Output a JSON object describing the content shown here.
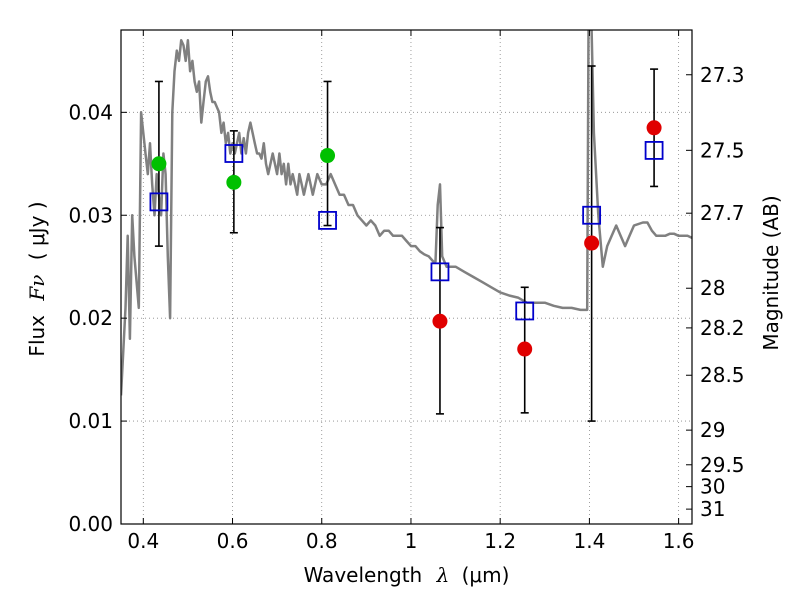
{
  "chart_data": {
    "type": "scatter",
    "xlabel_prefix": "Wavelength",
    "xlabel_symbol": "λ",
    "xlabel_unit": "(μm)",
    "ylabel_prefix": "Flux",
    "ylabel_symbol": "Fν",
    "ylabel_unit": "( μJy )",
    "y2label": "Magnitude (AB)",
    "xlim": [
      0.35,
      1.63
    ],
    "ylim": [
      0.0,
      0.048
    ],
    "x_ticks": [
      0.4,
      0.6,
      0.8,
      1.0,
      1.2,
      1.4,
      1.6
    ],
    "x_tick_labels": [
      "0.4",
      "0.6",
      "0.8",
      "1",
      "1.2",
      "1.4",
      "1.6"
    ],
    "y_ticks": [
      0.0,
      0.01,
      0.02,
      0.03,
      0.04
    ],
    "y_tick_labels": [
      "0.00",
      "0.01",
      "0.02",
      "0.03",
      "0.04"
    ],
    "mag_ticks": [
      {
        "label": "27.3",
        "mag": 27.3
      },
      {
        "label": "27.5",
        "mag": 27.5
      },
      {
        "label": "27.7",
        "mag": 27.7
      },
      {
        "label": "28",
        "mag": 28.0
      },
      {
        "label": "28.2",
        "mag": 28.2
      },
      {
        "label": "28.5",
        "mag": 28.5
      },
      {
        "label": "29",
        "mag": 29.0
      },
      {
        "label": "29.5",
        "mag": 29.5
      },
      {
        "label": "30",
        "mag": 30.0
      },
      {
        "label": "31",
        "mag": 31.0
      }
    ],
    "grid": true,
    "colors": {
      "model_line": "#808080",
      "detection": "#00c000",
      "upper_limit": "#e00000",
      "model_flux_box": "#0000cc",
      "error_bar": "#000000",
      "grid": "#888888"
    },
    "series": [
      {
        "kind": "model_spectrum",
        "points": [
          [
            0.35,
            0.0125
          ],
          [
            0.36,
            0.021
          ],
          [
            0.365,
            0.028
          ],
          [
            0.37,
            0.018
          ],
          [
            0.375,
            0.03
          ],
          [
            0.38,
            0.026
          ],
          [
            0.39,
            0.021
          ],
          [
            0.395,
            0.04
          ],
          [
            0.4,
            0.038
          ],
          [
            0.405,
            0.036
          ],
          [
            0.41,
            0.034
          ],
          [
            0.415,
            0.037
          ],
          [
            0.42,
            0.033
          ],
          [
            0.425,
            0.03
          ],
          [
            0.43,
            0.034
          ],
          [
            0.435,
            0.032
          ],
          [
            0.44,
            0.03
          ],
          [
            0.445,
            0.036
          ],
          [
            0.45,
            0.034
          ],
          [
            0.455,
            0.026
          ],
          [
            0.46,
            0.02
          ],
          [
            0.465,
            0.04
          ],
          [
            0.47,
            0.044
          ],
          [
            0.475,
            0.046
          ],
          [
            0.48,
            0.045
          ],
          [
            0.485,
            0.047
          ],
          [
            0.49,
            0.0465
          ],
          [
            0.495,
            0.045
          ],
          [
            0.5,
            0.047
          ],
          [
            0.505,
            0.044
          ],
          [
            0.51,
            0.045
          ],
          [
            0.515,
            0.043
          ],
          [
            0.52,
            0.042
          ],
          [
            0.525,
            0.043
          ],
          [
            0.53,
            0.039
          ],
          [
            0.535,
            0.041
          ],
          [
            0.54,
            0.043
          ],
          [
            0.545,
            0.0435
          ],
          [
            0.55,
            0.042
          ],
          [
            0.555,
            0.041
          ],
          [
            0.56,
            0.041
          ],
          [
            0.565,
            0.0405
          ],
          [
            0.57,
            0.04
          ],
          [
            0.575,
            0.038
          ],
          [
            0.58,
            0.039
          ],
          [
            0.585,
            0.037
          ],
          [
            0.59,
            0.038
          ],
          [
            0.595,
            0.036
          ],
          [
            0.6,
            0.037
          ],
          [
            0.605,
            0.036
          ],
          [
            0.61,
            0.037
          ],
          [
            0.615,
            0.038
          ],
          [
            0.62,
            0.036
          ],
          [
            0.625,
            0.0375
          ],
          [
            0.63,
            0.036
          ],
          [
            0.635,
            0.038
          ],
          [
            0.64,
            0.039
          ],
          [
            0.645,
            0.038
          ],
          [
            0.65,
            0.037
          ],
          [
            0.655,
            0.036
          ],
          [
            0.66,
            0.036
          ],
          [
            0.665,
            0.0355
          ],
          [
            0.67,
            0.037
          ],
          [
            0.675,
            0.035
          ],
          [
            0.68,
            0.034
          ],
          [
            0.69,
            0.036
          ],
          [
            0.695,
            0.035
          ],
          [
            0.7,
            0.034
          ],
          [
            0.705,
            0.036
          ],
          [
            0.71,
            0.034
          ],
          [
            0.715,
            0.035
          ],
          [
            0.72,
            0.033
          ],
          [
            0.725,
            0.035
          ],
          [
            0.73,
            0.033
          ],
          [
            0.735,
            0.034
          ],
          [
            0.74,
            0.033
          ],
          [
            0.745,
            0.032
          ],
          [
            0.75,
            0.034
          ],
          [
            0.755,
            0.033
          ],
          [
            0.76,
            0.032
          ],
          [
            0.77,
            0.034
          ],
          [
            0.78,
            0.032
          ],
          [
            0.79,
            0.034
          ],
          [
            0.8,
            0.033
          ],
          [
            0.81,
            0.033
          ],
          [
            0.82,
            0.034
          ],
          [
            0.83,
            0.033
          ],
          [
            0.84,
            0.032
          ],
          [
            0.85,
            0.032
          ],
          [
            0.86,
            0.031
          ],
          [
            0.87,
            0.031
          ],
          [
            0.88,
            0.03
          ],
          [
            0.89,
            0.0295
          ],
          [
            0.9,
            0.029
          ],
          [
            0.91,
            0.0295
          ],
          [
            0.92,
            0.029
          ],
          [
            0.93,
            0.028
          ],
          [
            0.94,
            0.0285
          ],
          [
            0.95,
            0.0285
          ],
          [
            0.96,
            0.028
          ],
          [
            0.97,
            0.028
          ],
          [
            0.98,
            0.028
          ],
          [
            0.99,
            0.0275
          ],
          [
            1.0,
            0.027
          ],
          [
            1.01,
            0.027
          ],
          [
            1.02,
            0.0265
          ],
          [
            1.03,
            0.0262
          ],
          [
            1.04,
            0.026
          ],
          [
            1.05,
            0.0255
          ],
          [
            1.055,
            0.0255
          ],
          [
            1.06,
            0.031
          ],
          [
            1.065,
            0.033
          ],
          [
            1.07,
            0.026
          ],
          [
            1.08,
            0.025
          ],
          [
            1.1,
            0.025
          ],
          [
            1.12,
            0.0245
          ],
          [
            1.14,
            0.024
          ],
          [
            1.16,
            0.0235
          ],
          [
            1.18,
            0.023
          ],
          [
            1.2,
            0.0225
          ],
          [
            1.22,
            0.0222
          ],
          [
            1.24,
            0.022
          ],
          [
            1.26,
            0.0215
          ],
          [
            1.28,
            0.0215
          ],
          [
            1.3,
            0.0215
          ],
          [
            1.32,
            0.0212
          ],
          [
            1.34,
            0.021
          ],
          [
            1.36,
            0.021
          ],
          [
            1.38,
            0.0208
          ],
          [
            1.395,
            0.0208
          ],
          [
            1.398,
            0.048
          ],
          [
            1.405,
            0.048
          ],
          [
            1.41,
            0.038
          ],
          [
            1.42,
            0.03
          ],
          [
            1.43,
            0.025
          ],
          [
            1.44,
            0.027
          ],
          [
            1.45,
            0.028
          ],
          [
            1.46,
            0.029
          ],
          [
            1.47,
            0.028
          ],
          [
            1.48,
            0.027
          ],
          [
            1.49,
            0.028
          ],
          [
            1.5,
            0.029
          ],
          [
            1.52,
            0.0293
          ],
          [
            1.53,
            0.0293
          ],
          [
            1.54,
            0.0285
          ],
          [
            1.55,
            0.028
          ],
          [
            1.56,
            0.028
          ],
          [
            1.57,
            0.028
          ],
          [
            1.58,
            0.0282
          ],
          [
            1.59,
            0.0282
          ],
          [
            1.6,
            0.028
          ],
          [
            1.62,
            0.028
          ],
          [
            1.63,
            0.0278
          ]
        ]
      },
      {
        "kind": "detection_green",
        "points": [
          {
            "x": 0.435,
            "y": 0.035
          },
          {
            "x": 0.603,
            "y": 0.0332
          },
          {
            "x": 0.813,
            "y": 0.0358
          }
        ]
      },
      {
        "kind": "upper_limit_red",
        "points": [
          {
            "x": 1.065,
            "y": 0.0197
          },
          {
            "x": 1.255,
            "y": 0.017
          },
          {
            "x": 1.405,
            "y": 0.0273
          },
          {
            "x": 1.545,
            "y": 0.0385
          }
        ]
      },
      {
        "kind": "model_flux_box",
        "points": [
          {
            "x": 0.435,
            "y": 0.0313
          },
          {
            "x": 0.603,
            "y": 0.036
          },
          {
            "x": 0.813,
            "y": 0.0295
          },
          {
            "x": 1.065,
            "y": 0.0245
          },
          {
            "x": 1.255,
            "y": 0.0207
          },
          {
            "x": 1.405,
            "y": 0.03
          },
          {
            "x": 1.545,
            "y": 0.0363
          }
        ]
      },
      {
        "kind": "error_bars",
        "points": [
          {
            "x": 0.435,
            "lo": 0.027,
            "hi": 0.043
          },
          {
            "x": 0.603,
            "lo": 0.0283,
            "hi": 0.0382
          },
          {
            "x": 0.813,
            "lo": 0.029,
            "hi": 0.043
          },
          {
            "x": 1.065,
            "lo": 0.0107,
            "hi": 0.0288
          },
          {
            "x": 1.255,
            "lo": 0.0108,
            "hi": 0.023
          },
          {
            "x": 1.405,
            "lo": 0.01,
            "hi": 0.0445
          },
          {
            "x": 1.545,
            "lo": 0.0328,
            "hi": 0.0442
          }
        ]
      }
    ]
  }
}
